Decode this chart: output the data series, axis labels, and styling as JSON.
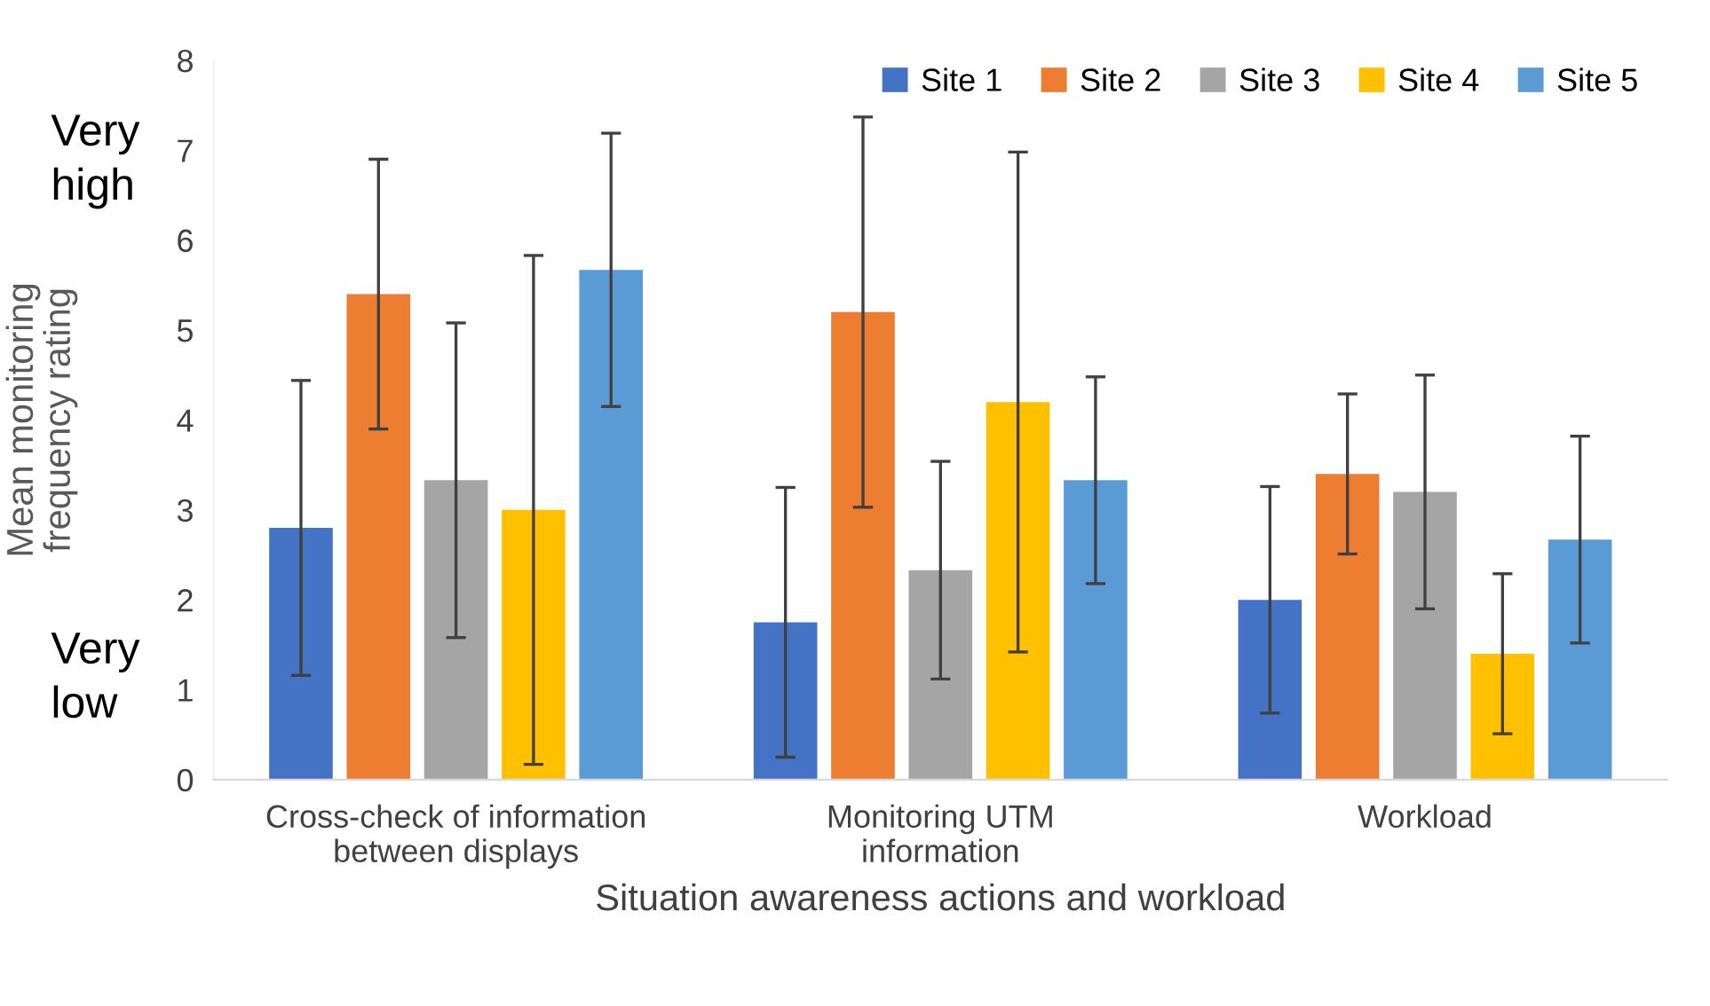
{
  "chart_data": {
    "type": "bar",
    "xlabel": "Situation awareness actions and workload",
    "ylabel": "Mean monitoring frequency rating",
    "categories": [
      "Cross-check of information\nbetween displays",
      "Monitoring UTM\ninformation",
      "Workload"
    ],
    "series": [
      {
        "name": "Site 1",
        "color": "#4472c4",
        "values": [
          2.8,
          1.75,
          2.0
        ],
        "errors": [
          1.64,
          1.5,
          1.26
        ]
      },
      {
        "name": "Site 2",
        "color": "#ed7d31",
        "values": [
          5.4,
          5.2,
          3.4
        ],
        "errors": [
          1.5,
          2.17,
          0.89
        ]
      },
      {
        "name": "Site 3",
        "color": "#a5a5a5",
        "values": [
          3.33,
          2.33,
          3.2
        ],
        "errors": [
          1.75,
          1.21,
          1.3
        ]
      },
      {
        "name": "Site 4",
        "color": "#ffc000",
        "values": [
          3.0,
          4.2,
          1.4
        ],
        "errors": [
          2.83,
          2.78,
          0.89
        ]
      },
      {
        "name": "Site 5",
        "color": "#5b9bd5",
        "values": [
          5.67,
          3.33,
          2.67
        ],
        "errors": [
          1.52,
          1.15,
          1.15
        ]
      }
    ],
    "ylim": [
      0,
      8
    ],
    "yticks": [
      0,
      1,
      2,
      3,
      4,
      5,
      6,
      7,
      8
    ],
    "grid": false,
    "legend": "top right",
    "annotations": [
      "Very\nhigh",
      "Very\nlow"
    ]
  }
}
